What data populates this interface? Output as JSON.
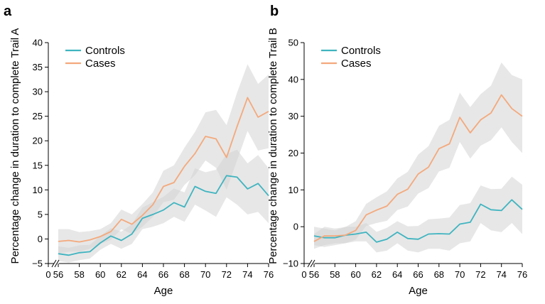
{
  "colors": {
    "controls": "#3fb4c0",
    "cases": "#f4a97c",
    "band": "#d3d3d3"
  },
  "chart_data": [
    {
      "type": "line",
      "panel_label": "a",
      "xlabel": "Age",
      "ylabel": "Percentage change in duration to complete Trail A",
      "x": [
        56,
        57,
        58,
        59,
        60,
        61,
        62,
        63,
        64,
        65,
        66,
        67,
        68,
        69,
        70,
        71,
        72,
        73,
        74,
        75,
        76
      ],
      "xlim": [
        54,
        76
      ],
      "ylim": [
        -5,
        40
      ],
      "x_tick_labels": [
        "0",
        "56",
        "58",
        "60",
        "62",
        "64",
        "66",
        "68",
        "70",
        "72",
        "74",
        "76"
      ],
      "y_ticks": [
        -5,
        0,
        5,
        10,
        15,
        20,
        25,
        30,
        35,
        40
      ],
      "y_tick_labels": [
        "−5",
        "0",
        "5",
        "10",
        "15",
        "20",
        "25",
        "30",
        "35",
        "40"
      ],
      "axis_break": "x",
      "legend_position": "top-left",
      "series": [
        {
          "name": "Controls",
          "color_key": "controls",
          "values": [
            -3.0,
            -3.3,
            -2.8,
            -2.6,
            -0.8,
            0.6,
            -0.3,
            1.0,
            4.2,
            5.0,
            5.9,
            7.4,
            6.5,
            10.7,
            9.7,
            9.3,
            12.9,
            12.6,
            10.2,
            11.3,
            8.8
          ],
          "ci_lower": [
            -4.5,
            -4.8,
            -4.3,
            -4.0,
            -2.2,
            -1.0,
            -2.0,
            -1.0,
            2.0,
            2.5,
            3.2,
            4.5,
            3.5,
            7.0,
            5.8,
            4.5,
            8.5,
            7.0,
            5.0,
            5.5,
            3.2
          ],
          "ci_upper": [
            -1.5,
            -1.8,
            -1.3,
            -1.2,
            0.6,
            2.2,
            1.5,
            3.0,
            6.4,
            7.5,
            8.6,
            10.3,
            9.5,
            14.4,
            13.6,
            14.1,
            17.3,
            18.2,
            15.4,
            17.1,
            14.4
          ]
        },
        {
          "name": "Cases",
          "color_key": "cases",
          "values": [
            -0.5,
            -0.3,
            -0.6,
            -0.2,
            0.5,
            1.5,
            4.0,
            3.0,
            4.8,
            7.0,
            10.7,
            11.5,
            14.8,
            17.4,
            20.9,
            20.4,
            16.6,
            22.9,
            28.8,
            24.8,
            26.0
          ],
          "ci_lower": [
            -3.0,
            -2.6,
            -2.6,
            -2.0,
            -1.0,
            -0.2,
            2.0,
            1.0,
            2.5,
            4.5,
            7.5,
            8.0,
            11.0,
            13.0,
            16.0,
            14.5,
            10.0,
            16.0,
            22.0,
            18.0,
            18.5
          ],
          "ci_upper": [
            2.0,
            2.0,
            1.4,
            1.6,
            2.0,
            3.2,
            6.0,
            5.0,
            7.1,
            9.5,
            13.9,
            15.0,
            18.6,
            21.8,
            25.8,
            26.3,
            23.2,
            29.8,
            35.6,
            31.6,
            33.5
          ]
        }
      ]
    },
    {
      "type": "line",
      "panel_label": "b",
      "xlabel": "Age",
      "ylabel": "Percentage change in duration to complete Trail B",
      "x": [
        56,
        57,
        58,
        59,
        60,
        61,
        62,
        63,
        64,
        65,
        66,
        67,
        68,
        69,
        70,
        71,
        72,
        73,
        74,
        75,
        76
      ],
      "xlim": [
        54,
        76
      ],
      "ylim": [
        -10,
        50
      ],
      "x_tick_labels": [
        "0",
        "56",
        "58",
        "60",
        "62",
        "64",
        "66",
        "68",
        "70",
        "72",
        "74",
        "76"
      ],
      "y_ticks": [
        -10,
        0,
        10,
        20,
        30,
        40,
        50
      ],
      "y_tick_labels": [
        "−10",
        "0",
        "10",
        "20",
        "30",
        "40",
        "50"
      ],
      "axis_break": "x",
      "legend_position": "top-left",
      "series": [
        {
          "name": "Controls",
          "color_key": "controls",
          "values": [
            -2.5,
            -3.0,
            -3.0,
            -2.3,
            -2.0,
            -1.5,
            -4.2,
            -3.4,
            -1.5,
            -3.2,
            -3.4,
            -2.0,
            -1.9,
            -2.0,
            0.7,
            1.2,
            6.1,
            4.6,
            4.4,
            7.3,
            4.7
          ],
          "ci_lower": [
            -5.0,
            -5.5,
            -5.0,
            -4.5,
            -4.0,
            -4.0,
            -7.0,
            -6.5,
            -4.5,
            -6.5,
            -7.0,
            -6.0,
            -6.0,
            -6.5,
            -4.5,
            -4.0,
            1.0,
            -1.0,
            -1.5,
            1.0,
            -2.0
          ],
          "ci_upper": [
            0.0,
            -0.5,
            -1.0,
            0.0,
            0.0,
            1.0,
            -1.4,
            -0.3,
            1.5,
            0.1,
            0.2,
            2.0,
            2.2,
            2.5,
            5.9,
            6.4,
            11.2,
            10.2,
            10.3,
            13.6,
            11.4
          ]
        },
        {
          "name": "Cases",
          "color_key": "cases",
          "values": [
            -4.0,
            -2.5,
            -2.5,
            -2.3,
            -1.0,
            3.2,
            4.5,
            5.6,
            8.8,
            10.2,
            14.3,
            16.2,
            21.2,
            22.5,
            29.7,
            25.5,
            29.0,
            30.9,
            35.8,
            32.1,
            30.0
          ],
          "ci_lower": [
            -6.0,
            -5.0,
            -4.5,
            -4.5,
            -3.5,
            0.2,
            1.0,
            1.6,
            4.5,
            5.5,
            9.0,
            10.5,
            15.0,
            16.0,
            23.0,
            18.5,
            22.0,
            23.5,
            27.0,
            23.0,
            20.0
          ],
          "ci_upper": [
            -2.0,
            0.0,
            -0.5,
            -0.1,
            1.5,
            6.2,
            8.0,
            9.6,
            13.1,
            14.9,
            19.6,
            21.9,
            27.4,
            29.0,
            36.4,
            32.5,
            36.0,
            38.3,
            44.6,
            41.2,
            40.0
          ]
        }
      ]
    }
  ]
}
